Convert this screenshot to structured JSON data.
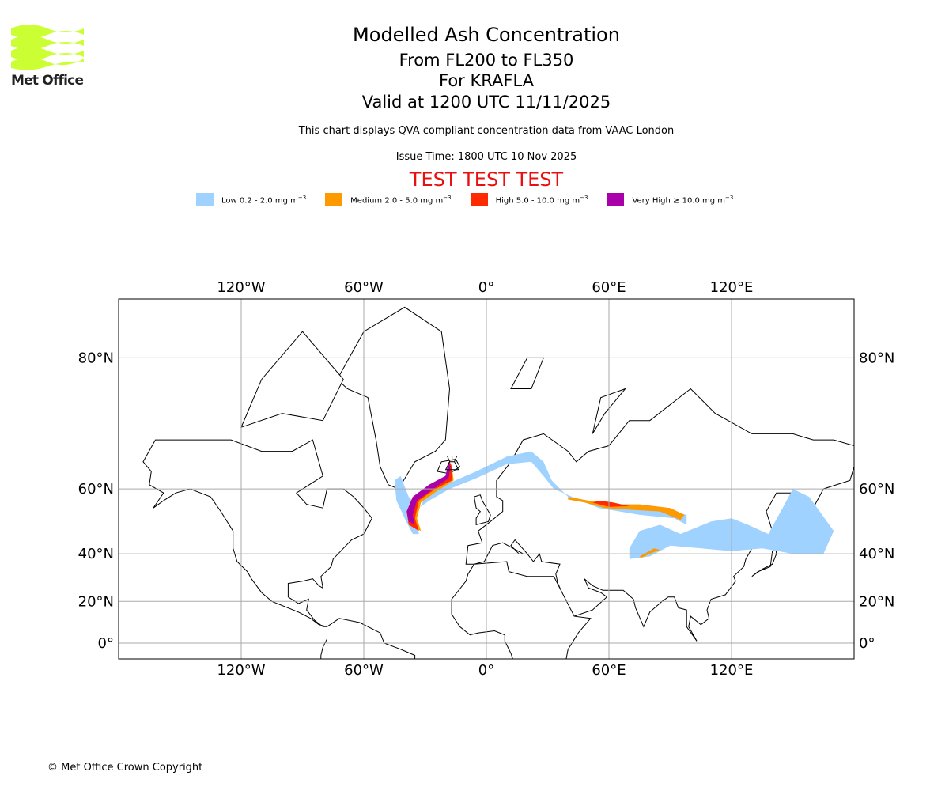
{
  "logo": {
    "text": "Met Office",
    "color": "#ccff33"
  },
  "header": {
    "title": "Modelled Ash Concentration",
    "levels": "From FL200 to FL350",
    "volcano": "For KRAFLA",
    "valid": "Valid at 1200 UTC 11/11/2025",
    "description": "This chart displays QVA compliant concentration data from VAAC London",
    "issue_time": "Issue Time: 1800 UTC 10 Nov 2025",
    "test_banner": "TEST TEST TEST"
  },
  "legend": [
    {
      "label": "Low 0.2 - 2.0 mg m",
      "sup": "−3",
      "color": "#a0d2ff"
    },
    {
      "label": "Medium 2.0 - 5.0 mg m",
      "sup": "−3",
      "color": "#ff9900"
    },
    {
      "label": "High 5.0 - 10.0 mg m",
      "sup": "−3",
      "color": "#ff2a00"
    },
    {
      "label": "Very High ≥ 10.0 mg m",
      "sup": "−3",
      "color": "#aa00aa"
    }
  ],
  "footer": {
    "copyright": "© Met Office Crown Copyright"
  },
  "chart_data": {
    "type": "map",
    "projection": "mercator",
    "lon_range": [
      -180,
      180
    ],
    "lat_range": [
      -7.7,
      86
    ],
    "grid": true,
    "lon_ticks": [
      {
        "v": -120,
        "label": "120°W"
      },
      {
        "v": -60,
        "label": "60°W"
      },
      {
        "v": 0,
        "label": "0°"
      },
      {
        "v": 60,
        "label": "60°E"
      },
      {
        "v": 120,
        "label": "120°E"
      }
    ],
    "lat_ticks": [
      {
        "v": 0,
        "label": "0°"
      },
      {
        "v": 20,
        "label": "20°N"
      },
      {
        "v": 40,
        "label": "40°N"
      },
      {
        "v": 60,
        "label": "60°N"
      },
      {
        "v": 80,
        "label": "80°N"
      }
    ],
    "volcano_location": [
      -16.8,
      65.7
    ],
    "land": [
      [
        [
          -168,
          66
        ],
        [
          -162,
          70
        ],
        [
          -140,
          70
        ],
        [
          -125,
          70
        ],
        [
          -110,
          68
        ],
        [
          -95,
          68
        ],
        [
          -85,
          70
        ],
        [
          -80,
          63
        ],
        [
          -93,
          59
        ],
        [
          -88,
          56
        ],
        [
          -80,
          55
        ],
        [
          -78,
          60
        ],
        [
          -70,
          60
        ],
        [
          -65,
          58
        ],
        [
          -60,
          55
        ],
        [
          -56,
          52
        ],
        [
          -60,
          47
        ],
        [
          -66,
          45
        ],
        [
          -70,
          42
        ],
        [
          -75,
          38
        ],
        [
          -76,
          35
        ],
        [
          -81,
          31
        ],
        [
          -80,
          26
        ],
        [
          -82,
          27
        ],
        [
          -85,
          30
        ],
        [
          -90,
          29
        ],
        [
          -97,
          28
        ],
        [
          -97,
          22
        ],
        [
          -92,
          19
        ],
        [
          -87,
          21
        ],
        [
          -88,
          16
        ],
        [
          -84,
          11
        ],
        [
          -80,
          8
        ],
        [
          -78,
          8
        ],
        [
          -82,
          9
        ],
        [
          -86,
          12
        ],
        [
          -92,
          15
        ],
        [
          -105,
          20
        ],
        [
          -110,
          24
        ],
        [
          -115,
          30
        ],
        [
          -117,
          33
        ],
        [
          -122,
          37
        ],
        [
          -124,
          42
        ],
        [
          -124,
          48
        ],
        [
          -130,
          54
        ],
        [
          -135,
          58
        ],
        [
          -145,
          60
        ],
        [
          -152,
          59
        ],
        [
          -158,
          57
        ],
        [
          -163,
          55
        ],
        [
          -158,
          59
        ],
        [
          -165,
          61
        ],
        [
          -164,
          64
        ]
      ],
      [
        [
          -78,
          8
        ],
        [
          -72,
          12
        ],
        [
          -62,
          10
        ],
        [
          -52,
          5
        ],
        [
          -50,
          0
        ],
        [
          -42,
          -3
        ],
        [
          -35,
          -6
        ],
        [
          -35,
          -8
        ],
        [
          -81,
          -8
        ],
        [
          -81,
          -6
        ],
        [
          -80,
          -2
        ],
        [
          -78,
          2
        ]
      ],
      [
        [
          -73,
          78
        ],
        [
          -60,
          82
        ],
        [
          -40,
          83.5
        ],
        [
          -22,
          82
        ],
        [
          -18,
          77
        ],
        [
          -20,
          70
        ],
        [
          -25,
          68
        ],
        [
          -35,
          66
        ],
        [
          -43,
          60
        ],
        [
          -48,
          61
        ],
        [
          -52,
          65
        ],
        [
          -54,
          70
        ],
        [
          -58,
          76
        ],
        [
          -68,
          77
        ]
      ],
      [
        [
          -120,
          72
        ],
        [
          -100,
          74
        ],
        [
          -80,
          73
        ],
        [
          -70,
          78
        ],
        [
          -90,
          82
        ],
        [
          -110,
          78
        ]
      ],
      [
        [
          -10,
          36
        ],
        [
          -9,
          43
        ],
        [
          -2,
          44
        ],
        [
          -4,
          48
        ],
        [
          2,
          51
        ],
        [
          8,
          54
        ],
        [
          8,
          57
        ],
        [
          5,
          58
        ],
        [
          5,
          62
        ],
        [
          12,
          66
        ],
        [
          18,
          70
        ],
        [
          28,
          71
        ],
        [
          40,
          68
        ],
        [
          44,
          66
        ],
        [
          50,
          68
        ],
        [
          60,
          69
        ],
        [
          70,
          73
        ],
        [
          80,
          73
        ],
        [
          100,
          77
        ],
        [
          112,
          74
        ],
        [
          130,
          71
        ],
        [
          150,
          71
        ],
        [
          160,
          70
        ],
        [
          170,
          70
        ],
        [
          180,
          69
        ],
        [
          180,
          65
        ],
        [
          178,
          62
        ],
        [
          165,
          60
        ],
        [
          160,
          55
        ],
        [
          156,
          51
        ],
        [
          156,
          57
        ],
        [
          150,
          59
        ],
        [
          142,
          59
        ],
        [
          137,
          54
        ],
        [
          140,
          48
        ],
        [
          135,
          43
        ],
        [
          130,
          42
        ],
        [
          127,
          38
        ],
        [
          126,
          35
        ],
        [
          121,
          31
        ],
        [
          122,
          29
        ],
        [
          117,
          23
        ],
        [
          110,
          21
        ],
        [
          108,
          16
        ],
        [
          109,
          12
        ],
        [
          105,
          9
        ],
        [
          100,
          13
        ],
        [
          99,
          8
        ],
        [
          103,
          1
        ],
        [
          98,
          8
        ],
        [
          98,
          16
        ],
        [
          94,
          17
        ],
        [
          92,
          22
        ],
        [
          89,
          22
        ],
        [
          86,
          20
        ],
        [
          80,
          15
        ],
        [
          77,
          8
        ],
        [
          73,
          17
        ],
        [
          72,
          21
        ],
        [
          67,
          25
        ],
        [
          57,
          25
        ],
        [
          52,
          27
        ],
        [
          48,
          30
        ],
        [
          50,
          26
        ],
        [
          56,
          24
        ],
        [
          59,
          22
        ],
        [
          52,
          16
        ],
        [
          43,
          13
        ],
        [
          39,
          20
        ],
        [
          35,
          28
        ],
        [
          34,
          32
        ],
        [
          36,
          36
        ],
        [
          27,
          37
        ],
        [
          26,
          40
        ],
        [
          23,
          37
        ],
        [
          20,
          40
        ],
        [
          14,
          45
        ],
        [
          12,
          43
        ],
        [
          16,
          40
        ],
        [
          18,
          40
        ],
        [
          8,
          44
        ],
        [
          3,
          43
        ],
        [
          -1,
          37
        ],
        [
          -6,
          36
        ]
      ],
      [
        [
          -6,
          36
        ],
        [
          10,
          37
        ],
        [
          11,
          33
        ],
        [
          20,
          31
        ],
        [
          30,
          31
        ],
        [
          33,
          31
        ],
        [
          43,
          13
        ],
        [
          51,
          12
        ],
        [
          45,
          5
        ],
        [
          40,
          -3
        ],
        [
          39,
          -8
        ],
        [
          13,
          -8
        ],
        [
          12,
          -5
        ],
        [
          9,
          1
        ],
        [
          9,
          4
        ],
        [
          4,
          6
        ],
        [
          -4,
          5
        ],
        [
          -8,
          4
        ],
        [
          -13,
          8
        ],
        [
          -17,
          14
        ],
        [
          -17,
          21
        ],
        [
          -10,
          29
        ],
        [
          -9,
          32
        ]
      ],
      [
        [
          -24,
          64
        ],
        [
          -22,
          66
        ],
        [
          -15,
          66.5
        ],
        [
          -13,
          65
        ],
        [
          -18,
          63.5
        ]
      ],
      [
        [
          -5,
          50
        ],
        [
          1,
          51
        ],
        [
          2,
          53
        ],
        [
          -2,
          57
        ],
        [
          -3,
          58.5
        ],
        [
          -6,
          58
        ],
        [
          -5,
          55
        ],
        [
          -3,
          54
        ],
        [
          -5,
          52
        ]
      ],
      [
        [
          130,
          31
        ],
        [
          135,
          34
        ],
        [
          140,
          36
        ],
        [
          142,
          40
        ],
        [
          141,
          45
        ],
        [
          145,
          44
        ],
        [
          140,
          41
        ],
        [
          139,
          35
        ],
        [
          133,
          33
        ]
      ],
      [
        [
          12,
          77
        ],
        [
          20,
          80
        ],
        [
          28,
          80
        ],
        [
          22,
          77
        ]
      ],
      [
        [
          52,
          71
        ],
        [
          56,
          76
        ],
        [
          68,
          77
        ],
        [
          58,
          74
        ]
      ]
    ],
    "plumes": [
      {
        "level": "Low",
        "color": "#a0d2ff",
        "points": [
          [
            -45,
            62
          ],
          [
            -44,
            57
          ],
          [
            -40,
            52
          ],
          [
            -36,
            47
          ],
          [
            -33,
            47
          ],
          [
            -35,
            52
          ],
          [
            -30,
            58
          ],
          [
            -20,
            61
          ],
          [
            -5,
            64
          ],
          [
            10,
            67
          ],
          [
            22,
            68
          ],
          [
            28,
            66
          ],
          [
            32,
            62
          ],
          [
            40,
            58
          ],
          [
            55,
            56
          ],
          [
            70,
            55
          ],
          [
            90,
            54
          ],
          [
            98,
            53
          ],
          [
            98,
            50
          ],
          [
            92,
            52
          ],
          [
            75,
            53
          ],
          [
            55,
            55
          ],
          [
            42,
            58
          ],
          [
            33,
            60
          ],
          [
            28,
            63
          ],
          [
            22,
            66
          ],
          [
            10,
            65.5
          ],
          [
            -5,
            62.5
          ],
          [
            -18,
            60
          ],
          [
            -28,
            57
          ],
          [
            -33,
            55
          ],
          [
            -38,
            58
          ],
          [
            -42,
            63
          ]
        ]
      },
      {
        "level": "Low",
        "color": "#a0d2ff",
        "points": [
          [
            70,
            42
          ],
          [
            75,
            48
          ],
          [
            85,
            50
          ],
          [
            95,
            47
          ],
          [
            110,
            51
          ],
          [
            120,
            52
          ],
          [
            128,
            50
          ],
          [
            138,
            47
          ],
          [
            145,
            55
          ],
          [
            150,
            60
          ],
          [
            158,
            58
          ],
          [
            170,
            48
          ],
          [
            165,
            40
          ],
          [
            150,
            40
          ],
          [
            135,
            42
          ],
          [
            120,
            41
          ],
          [
            105,
            42
          ],
          [
            90,
            43
          ],
          [
            80,
            39
          ],
          [
            70,
            38
          ]
        ]
      },
      {
        "level": "Medium",
        "color": "#ff9900",
        "points": [
          [
            40,
            58
          ],
          [
            50,
            57
          ],
          [
            60,
            56
          ],
          [
            75,
            56
          ],
          [
            90,
            55
          ],
          [
            97,
            53
          ],
          [
            95,
            51.5
          ],
          [
            85,
            54
          ],
          [
            70,
            54.5
          ],
          [
            58,
            55
          ],
          [
            48,
            56.5
          ],
          [
            40,
            57.3
          ]
        ]
      },
      {
        "level": "Medium",
        "color": "#ff9900",
        "points": [
          [
            75,
            39
          ],
          [
            82,
            42
          ],
          [
            85,
            41.5
          ],
          [
            80,
            40
          ],
          [
            76,
            38.5
          ]
        ]
      },
      {
        "level": "Medium",
        "color": "#ff9900",
        "points": [
          [
            -17,
            65.3
          ],
          [
            -16,
            62
          ],
          [
            -24,
            59.5
          ],
          [
            -32,
            56.5
          ],
          [
            -34,
            52
          ],
          [
            -32,
            48
          ],
          [
            -38,
            50
          ],
          [
            -39,
            54
          ],
          [
            -36,
            58
          ],
          [
            -28,
            61
          ],
          [
            -20,
            63
          ],
          [
            -18,
            66
          ]
        ]
      },
      {
        "level": "High",
        "color": "#ff2a00",
        "points": [
          [
            52,
            56.5
          ],
          [
            60,
            55.3
          ],
          [
            70,
            55.5
          ],
          [
            62,
            56.5
          ],
          [
            55,
            57
          ]
        ]
      },
      {
        "level": "High",
        "color": "#ff2a00",
        "points": [
          [
            -17,
            65
          ],
          [
            -17,
            62
          ],
          [
            -25,
            60
          ],
          [
            -33,
            57
          ],
          [
            -35,
            52
          ],
          [
            -33,
            48
          ],
          [
            -38,
            50
          ],
          [
            -39,
            54
          ],
          [
            -36,
            58
          ],
          [
            -28,
            61
          ],
          [
            -20,
            63
          ],
          [
            -18,
            66
          ]
        ]
      },
      {
        "level": "Very High",
        "color": "#aa00aa",
        "points": [
          [
            -17.5,
            65
          ],
          [
            -18.5,
            62.5
          ],
          [
            -26,
            60
          ],
          [
            -34,
            57
          ],
          [
            -36,
            53
          ],
          [
            -35,
            50
          ],
          [
            -38,
            51
          ],
          [
            -39,
            54
          ],
          [
            -36,
            58
          ],
          [
            -28,
            61
          ],
          [
            -20,
            63
          ],
          [
            -18.5,
            66
          ]
        ]
      }
    ]
  }
}
